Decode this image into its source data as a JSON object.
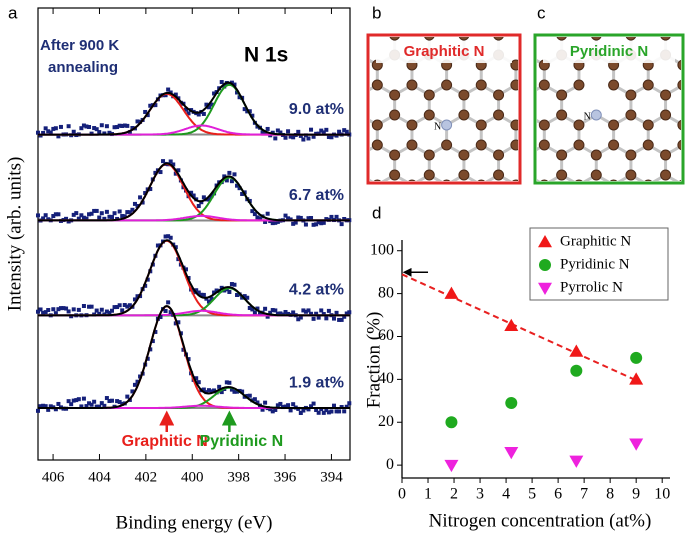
{
  "panel_labels": [
    "a",
    "b",
    "c",
    "d"
  ],
  "chart_data": [
    {
      "type": "xps",
      "xlabel": "Binding energy (eV)",
      "ylabel": "Intensity (arb. units)",
      "label": "N 1s",
      "annotation": [
        "After 900 K",
        "annealing"
      ],
      "xlim": [
        406.65,
        393.2
      ],
      "xticks": [
        406,
        404,
        402,
        400,
        398,
        396,
        394
      ],
      "ylim": [
        0,
        10
      ],
      "components": [
        {
          "label": "Graphitic N",
          "center": 401.1,
          "width": 0.72,
          "color": "#e8201c"
        },
        {
          "label": "Pyridinic N",
          "center": 398.4,
          "width": 0.66,
          "color": "#1e9a1e"
        },
        {
          "center": 399.6,
          "width": 0.7,
          "color": "#e020d8"
        }
      ],
      "series": [
        {
          "name": "9.0 at%",
          "offset": 7.2,
          "amplitudes": [
            0.9,
            1.1,
            0.2
          ]
        },
        {
          "name": "6.7 at%",
          "offset": 5.3,
          "amplitudes": [
            1.25,
            0.95,
            0.1
          ]
        },
        {
          "name": "4.2 at%",
          "offset": 3.2,
          "amplitudes": [
            1.65,
            0.6,
            0.1
          ]
        },
        {
          "name": "1.9 at%",
          "offset": 1.15,
          "amplitudes": [
            2.25,
            0.45,
            0.05
          ]
        }
      ]
    },
    {
      "type": "scatter",
      "xlabel": "Nitrogen concentration (at%)",
      "ylabel": "Fraction (%)",
      "xlim": [
        0,
        10.3
      ],
      "xticks": [
        0,
        1,
        2,
        3,
        4,
        5,
        6,
        7,
        8,
        9,
        10
      ],
      "ylim": [
        -6,
        105
      ],
      "yticks": [
        0,
        20,
        40,
        60,
        80,
        100
      ],
      "legend": "upper right",
      "x": [
        1.9,
        4.2,
        6.7,
        9.0
      ],
      "series": [
        {
          "name": "Graphitic N",
          "color": "#f01818",
          "marker": "triangle",
          "values": [
            80,
            65,
            53,
            40
          ]
        },
        {
          "name": "Pyridinic N",
          "color": "#1faa1f",
          "marker": "circle",
          "values": [
            20,
            29,
            44,
            50
          ]
        },
        {
          "name": "Pyrrolic N",
          "color": "#ee22dd",
          "marker": "triangle-down",
          "values": [
            0,
            6,
            2,
            10
          ]
        }
      ],
      "trend": {
        "color": "#e82020",
        "x": [
          0,
          9.1
        ],
        "values": [
          89,
          39
        ]
      }
    }
  ],
  "diagrams": [
    {
      "title": "Graphitic N",
      "atom_label": "N",
      "color": "#e02a2a"
    },
    {
      "title": "Pyridinic N",
      "atom_label": "N",
      "color": "#2aa52a"
    }
  ]
}
